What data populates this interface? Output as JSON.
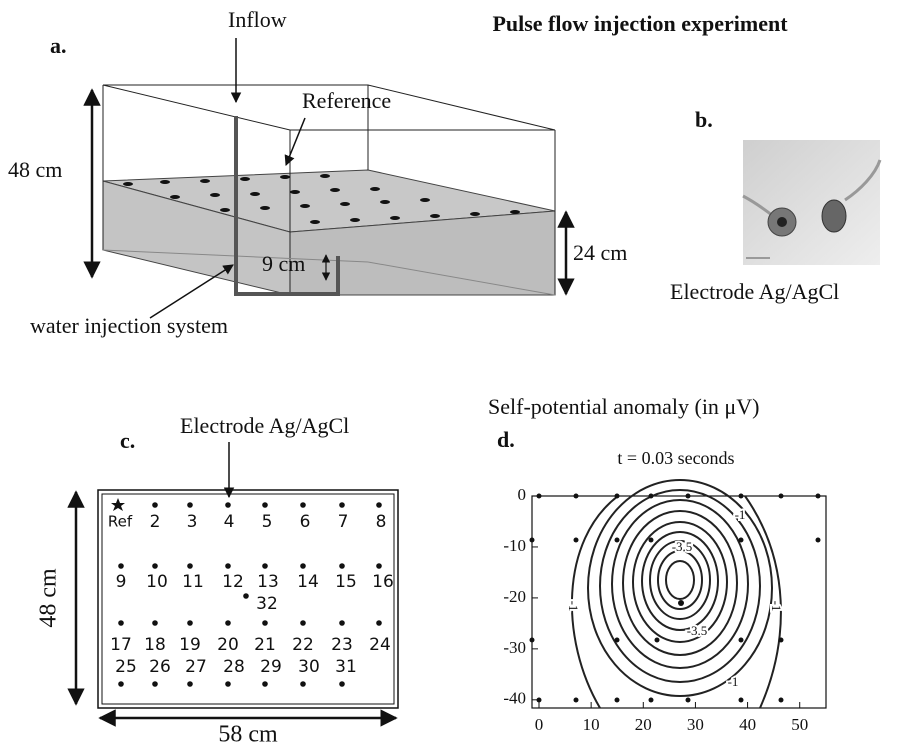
{
  "title": "Pulse flow injection experiment",
  "panel_a": {
    "label": "a.",
    "inflow": "Inflow",
    "reference": "Reference",
    "height": "48 cm",
    "water_depth": "24 cm",
    "injection_height": "9 cm",
    "injection": "water injection system"
  },
  "panel_b": {
    "label": "b.",
    "caption": "Electrode Ag/AgCl"
  },
  "panel_c": {
    "label": "c.",
    "electrode": "Electrode Ag/AgCl",
    "height": "48 cm",
    "width": "58 cm",
    "electrodes": [
      "Ref",
      "2",
      "3",
      "4",
      "5",
      "6",
      "7",
      "8",
      "9",
      "10",
      "11",
      "12",
      "13",
      "14",
      "15",
      "16",
      "17",
      "18",
      "19",
      "20",
      "21",
      "22",
      "23",
      "24",
      "25",
      "26",
      "27",
      "28",
      "29",
      "30",
      "31",
      "32"
    ]
  },
  "panel_d": {
    "label": "d.",
    "title": "Self-potential anomaly (in μV)",
    "subtitle": "t = 0.03 seconds",
    "xlim": [
      0,
      56
    ],
    "ylim": [
      -42,
      0
    ],
    "xticks": [
      0,
      10,
      20,
      30,
      40,
      50
    ],
    "yticks": [
      0,
      -10,
      -20,
      -30,
      -40
    ],
    "contour_labels": [
      "-1",
      "-3.5",
      "-1",
      "-1",
      "-3.5",
      "-1"
    ]
  }
}
